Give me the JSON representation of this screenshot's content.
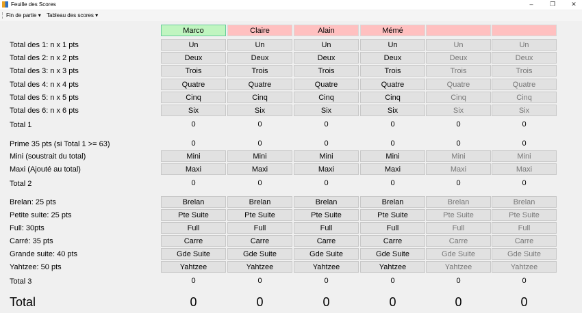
{
  "window": {
    "title": "Feuille des Scores",
    "minimize": "–",
    "restore": "❐",
    "close": "✕"
  },
  "menu": [
    "Fin de partie ▾",
    "Tableau des scores ▾"
  ],
  "players": [
    {
      "name": "Marco",
      "active": true,
      "enabled": true
    },
    {
      "name": "Claire",
      "active": false,
      "enabled": true
    },
    {
      "name": "Alain",
      "active": false,
      "enabled": true
    },
    {
      "name": "Mémé",
      "active": false,
      "enabled": true
    },
    {
      "name": "",
      "active": false,
      "enabled": false
    },
    {
      "name": "",
      "active": false,
      "enabled": false
    }
  ],
  "colors": {
    "active": "#c0f5c0",
    "inactive": "#ffc0c0"
  },
  "rows": [
    {
      "label": "Total des 1: n x 1 pts",
      "button": "Un"
    },
    {
      "label": "Total des 2: n x 2 pts",
      "button": "Deux"
    },
    {
      "label": "Total des 3: n x 3 pts",
      "button": "Trois"
    },
    {
      "label": "Total des 4: n x 4 pts",
      "button": "Quatre"
    },
    {
      "label": "Total des 5: n x 5 pts",
      "button": "Cinq"
    },
    {
      "label": "Total des 6: n x 6 pts",
      "button": "Six"
    },
    {
      "label": "Total 1",
      "values": [
        "0",
        "0",
        "0",
        "0",
        "0",
        "0"
      ]
    },
    {
      "label": "Prime 35 pts (si Total 1 >= 63)",
      "values": [
        "0",
        "0",
        "0",
        "0",
        "0",
        "0"
      ]
    },
    {
      "label": "Mini (soustrait du total)",
      "button": "Mini"
    },
    {
      "label": "Maxi (Ajouté au total)",
      "button": "Maxi"
    },
    {
      "label": "Total 2",
      "values": [
        "0",
        "0",
        "0",
        "0",
        "0",
        "0"
      ]
    },
    {
      "label": "Brelan: 25 pts",
      "button": "Brelan"
    },
    {
      "label": "Petite suite: 25 pts",
      "button": "Pte Suite"
    },
    {
      "label": "Full: 30pts",
      "button": "Full"
    },
    {
      "label": "Carré: 35 pts",
      "button": "Carre"
    },
    {
      "label": "Grande suite: 40 pts",
      "button": "Gde Suite"
    },
    {
      "label": "Yahtzee: 50 pts",
      "button": "Yahtzee"
    },
    {
      "label": "Total 3",
      "values": [
        "0",
        "0",
        "0",
        "0",
        "0",
        "0"
      ]
    },
    {
      "label": "Total",
      "values": [
        "0",
        "0",
        "0",
        "0",
        "0",
        "0"
      ],
      "big": true
    }
  ]
}
